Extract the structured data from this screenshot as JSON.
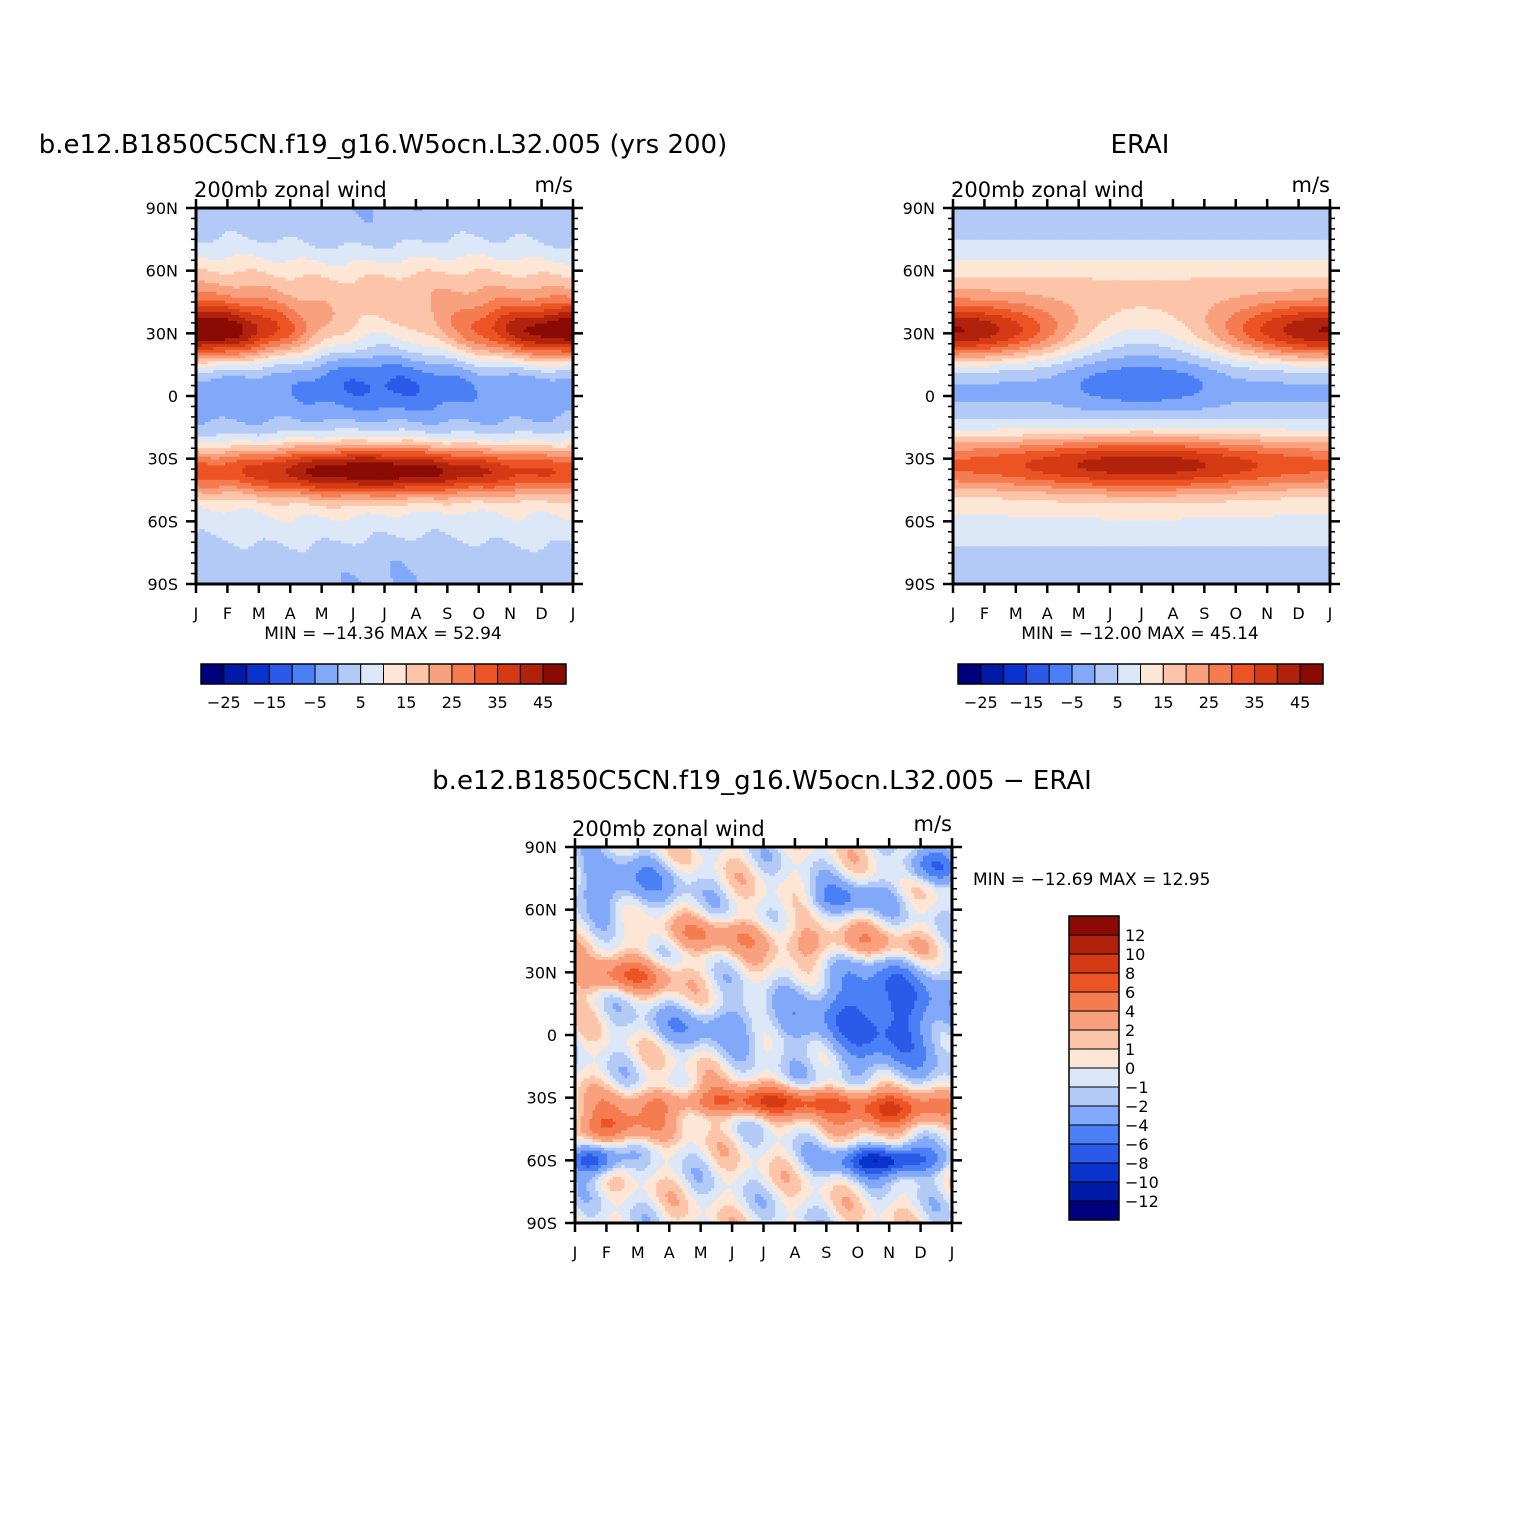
{
  "panels": [
    {
      "title": "b.e12.B1850C5CN.f19_g16.W5ocn.L32.005 (yrs 200)",
      "subtitle_left": "200mb zonal wind",
      "subtitle_right": "m/s",
      "stats": "MIN = −14.36 MAX =  52.94",
      "colorbar_labels": [
        "−25",
        "−15",
        "−5",
        "5",
        "15",
        "25",
        "35",
        "45"
      ]
    },
    {
      "title": "ERAI",
      "subtitle_left": "200mb zonal wind",
      "subtitle_right": "m/s",
      "stats": "MIN = −12.00 MAX =  45.14",
      "colorbar_labels": [
        "−25",
        "−15",
        "−5",
        "5",
        "15",
        "25",
        "35",
        "45"
      ]
    },
    {
      "title": "b.e12.B1850C5CN.f19_g16.W5ocn.L32.005 − ERAI",
      "subtitle_left": "200mb zonal wind",
      "subtitle_right": "m/s",
      "stats": "MIN = −12.69 MAX =  12.95",
      "colorbar_labels": [
        "12",
        "10",
        "8",
        "6",
        "4",
        "2",
        "1",
        "0",
        "−1",
        "−2",
        "−4",
        "−6",
        "−8",
        "−10",
        "−12"
      ]
    }
  ],
  "chart_data": [
    {
      "type": "heatmap",
      "title": "b.e12.B1850C5CN.f19_g16.W5ocn.L32.005 (yrs 200)",
      "subtitle": "200mb zonal wind",
      "units": "m/s",
      "x_tick_labels": [
        "J",
        "F",
        "M",
        "A",
        "M",
        "J",
        "J",
        "A",
        "S",
        "O",
        "N",
        "D",
        "J"
      ],
      "y_tick_labels": [
        "90N",
        "60N",
        "30N",
        "0",
        "30S",
        "60S",
        "90S"
      ],
      "ylim": [
        -90,
        90
      ],
      "min": -14.36,
      "max": 52.94,
      "contour_levels": [
        -30,
        -25,
        -20,
        -15,
        -10,
        -5,
        0,
        5,
        10,
        15,
        20,
        25,
        30,
        35,
        40,
        45,
        50
      ],
      "colors": [
        "#00007f",
        "#001aa6",
        "#0a32cc",
        "#2c5ae8",
        "#4a7ff5",
        "#82a8fa",
        "#b3caf7",
        "#dce8f8",
        "#fde6d5",
        "#fcc5aa",
        "#f9a07e",
        "#f57c50",
        "#ec5425",
        "#d43a14",
        "#b1220c",
        "#8a0b04"
      ],
      "features": [
        {
          "name": "NH jet",
          "lat": 29,
          "peak_month": "F",
          "max": 50
        },
        {
          "name": "SH jet",
          "lat": -30,
          "peak_month": "J",
          "max": 45
        },
        {
          "name": "equatorial easterlies",
          "lat": 5,
          "peak_month": "J",
          "min": -14
        }
      ]
    },
    {
      "type": "heatmap",
      "title": "ERAI",
      "subtitle": "200mb zonal wind",
      "units": "m/s",
      "x_tick_labels": [
        "J",
        "F",
        "M",
        "A",
        "M",
        "J",
        "J",
        "A",
        "S",
        "O",
        "N",
        "D",
        "J"
      ],
      "y_tick_labels": [
        "90N",
        "60N",
        "30N",
        "0",
        "30S",
        "60S",
        "90S"
      ],
      "ylim": [
        -90,
        90
      ],
      "min": -12.0,
      "max": 45.14,
      "contour_levels": [
        -30,
        -25,
        -20,
        -15,
        -10,
        -5,
        0,
        5,
        10,
        15,
        20,
        25,
        30,
        35,
        40,
        45,
        50
      ],
      "colors": [
        "#00007f",
        "#001aa6",
        "#0a32cc",
        "#2c5ae8",
        "#4a7ff5",
        "#82a8fa",
        "#b3caf7",
        "#dce8f8",
        "#fde6d5",
        "#fcc5aa",
        "#f9a07e",
        "#f57c50",
        "#ec5425",
        "#d43a14",
        "#b1220c",
        "#8a0b04"
      ],
      "features": [
        {
          "name": "NH jet",
          "lat": 30,
          "peak_month": "J",
          "max": 42
        },
        {
          "name": "SH jet",
          "lat": -30,
          "peak_month": "J",
          "max": 42
        },
        {
          "name": "equatorial easterlies",
          "lat": 7,
          "peak_month": "J",
          "min": -12
        }
      ]
    },
    {
      "type": "heatmap",
      "title": "b.e12.B1850C5CN.f19_g16.W5ocn.L32.005 − ERAI",
      "subtitle": "200mb zonal wind",
      "units": "m/s",
      "x_tick_labels": [
        "J",
        "F",
        "M",
        "A",
        "M",
        "J",
        "J",
        "A",
        "S",
        "O",
        "N",
        "D",
        "J"
      ],
      "y_tick_labels": [
        "90N",
        "60N",
        "30N",
        "0",
        "30S",
        "60S",
        "90S"
      ],
      "ylim": [
        -90,
        90
      ],
      "min": -12.69,
      "max": 12.95,
      "contour_levels": [
        -12,
        -10,
        -8,
        -6,
        -4,
        -2,
        -1,
        0,
        1,
        2,
        4,
        6,
        8,
        10,
        12
      ],
      "colors": [
        "#00007f",
        "#001aa6",
        "#0a32cc",
        "#2c5ae8",
        "#4a7ff5",
        "#82a8fa",
        "#b3caf7",
        "#dce8f8",
        "#fde6d5",
        "#fcc5aa",
        "#f9a07e",
        "#f57c50",
        "#ec5425",
        "#d43a14",
        "#b1220c",
        "#8a0b04"
      ]
    }
  ]
}
